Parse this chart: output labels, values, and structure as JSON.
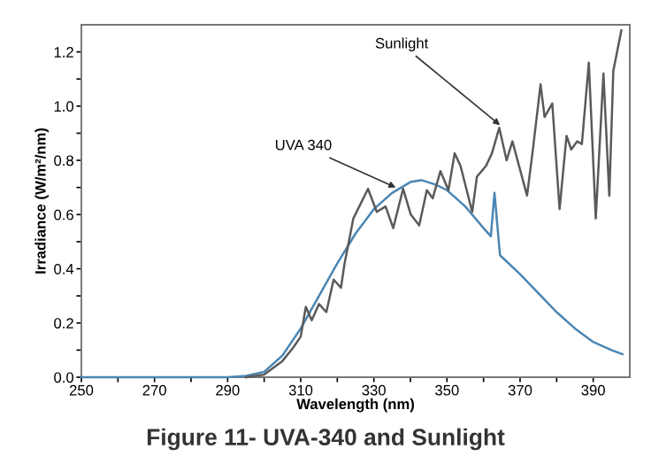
{
  "chart_data": {
    "type": "line",
    "title": "Figure 11- UVA-340 and Sunlight",
    "xlabel": "Wavelength (nm)",
    "ylabel": "Irradiance (W/m²/nm)",
    "xlim": [
      250,
      400
    ],
    "ylim": [
      0,
      1.3
    ],
    "xticks": [
      250,
      {
        "value": 260,
        "label": null
      },
      270,
      {
        "value": 280,
        "label": null
      },
      290,
      {
        "value": 300,
        "label": null
      },
      310,
      {
        "value": 320,
        "label": null
      },
      330,
      {
        "value": 340,
        "label": null
      },
      350,
      {
        "value": 360,
        "label": null
      },
      370,
      {
        "value": 380,
        "label": null
      },
      390
    ],
    "yticks": [
      {
        "value": 0,
        "label": "0.0"
      },
      {
        "value": 0.1,
        "label": null
      },
      0.2,
      {
        "value": 0.3,
        "label": null
      },
      0.4,
      {
        "value": 0.5,
        "label": null
      },
      0.6,
      {
        "value": 0.7,
        "label": null
      },
      0.8,
      {
        "value": 0.9,
        "label": null
      },
      {
        "value": 1.0,
        "label": "1.0"
      },
      {
        "value": 1.1,
        "label": null
      },
      1.2
    ],
    "grid": false,
    "legend": false,
    "marker": "none",
    "line_style": "solid",
    "series": [
      {
        "color": "#4a86b4",
        "x": [
          250,
          270,
          290,
          295,
          300,
          305,
          310,
          315,
          320,
          325,
          330,
          335,
          340,
          343,
          347,
          350,
          355,
          360,
          362,
          363,
          364.5,
          370,
          375,
          380,
          385,
          390,
          395,
          398
        ],
        "values": [
          0,
          0,
          0,
          0.005,
          0.02,
          0.08,
          0.18,
          0.3,
          0.42,
          0.53,
          0.62,
          0.68,
          0.72,
          0.727,
          0.71,
          0.69,
          0.63,
          0.55,
          0.52,
          0.68,
          0.45,
          0.38,
          0.31,
          0.24,
          0.18,
          0.13,
          0.1,
          0.085
        ]
      },
      {
        "color": "#5a5a5a",
        "x": [
          295,
          300,
          305,
          308,
          310,
          311.4,
          313,
          315,
          317,
          319,
          321,
          322,
          324.4,
          328.4,
          330.8,
          333.2,
          335.3,
          338,
          340.1,
          342.4,
          344.5,
          346.1,
          348.2,
          350.4,
          352.1,
          353.7,
          356.9,
          358.2,
          360.7,
          362.3,
          364.3,
          366.3,
          367.9,
          371.9,
          373.5,
          375.6,
          376.7,
          378.8,
          380.8,
          382.7,
          384,
          385.6,
          386.9,
          388.8,
          390.7,
          392.8,
          394.4,
          395.5,
          397.7
        ],
        "values": [
          0,
          0.01,
          0.06,
          0.11,
          0.15,
          0.26,
          0.21,
          0.27,
          0.24,
          0.36,
          0.33,
          0.42,
          0.586,
          0.695,
          0.61,
          0.63,
          0.55,
          0.695,
          0.6,
          0.56,
          0.69,
          0.66,
          0.76,
          0.69,
          0.826,
          0.78,
          0.61,
          0.74,
          0.78,
          0.826,
          0.92,
          0.8,
          0.87,
          0.67,
          0.84,
          1.08,
          0.96,
          1.01,
          0.62,
          0.89,
          0.84,
          0.87,
          0.86,
          1.16,
          0.586,
          1.12,
          0.67,
          1.13,
          1.28
        ]
      }
    ],
    "annotations": [
      {
        "text": "UVA 340",
        "x": 336,
        "y": 0.7
      },
      {
        "text": "Sunlight",
        "x": 364.5,
        "y": 0.93
      }
    ]
  }
}
